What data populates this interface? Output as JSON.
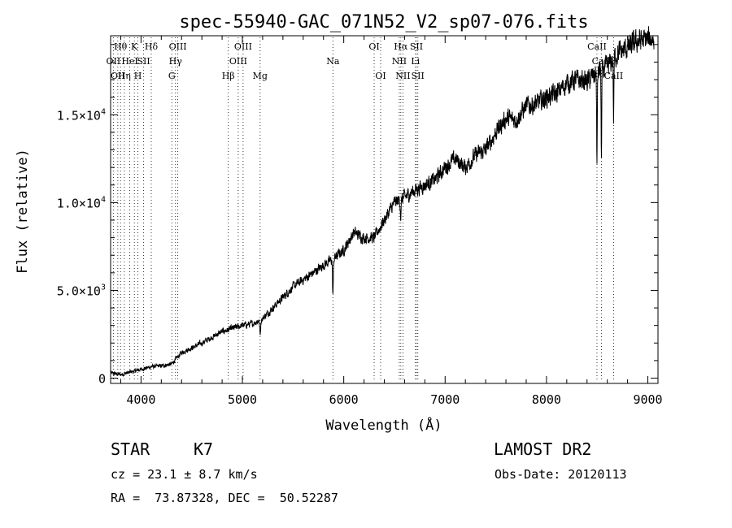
{
  "chart_data": {
    "type": "line",
    "title": "spec-55940-GAC_071N52_V2_sp07-076.fits",
    "xlabel": "Wavelength (Å)",
    "ylabel": "Flux (relative)",
    "xlim": [
      3700,
      9100
    ],
    "ylim": [
      -300,
      19500
    ],
    "x_ticks": [
      {
        "value": 4000,
        "label": "4000"
      },
      {
        "value": 5000,
        "label": "5000"
      },
      {
        "value": 6000,
        "label": "6000"
      },
      {
        "value": 7000,
        "label": "7000"
      },
      {
        "value": 8000,
        "label": "8000"
      },
      {
        "value": 9000,
        "label": "9000"
      }
    ],
    "y_ticks": [
      {
        "value": 0,
        "label": "0",
        "exp": ""
      },
      {
        "value": 5000,
        "label": "5.0×10",
        "exp": "3"
      },
      {
        "value": 10000,
        "label": "1.0×10",
        "exp": "4"
      },
      {
        "value": 15000,
        "label": "1.5×10",
        "exp": "4"
      }
    ],
    "series": [
      {
        "name": "spectrum",
        "continuum": [
          [
            3700,
            300
          ],
          [
            3800,
            200
          ],
          [
            3900,
            350
          ],
          [
            4000,
            500
          ],
          [
            4100,
            650
          ],
          [
            4200,
            700
          ],
          [
            4300,
            800
          ],
          [
            4400,
            1450
          ],
          [
            4600,
            2000
          ],
          [
            4800,
            2650
          ],
          [
            5000,
            3000
          ],
          [
            5100,
            3100
          ],
          [
            5200,
            3400
          ],
          [
            5300,
            4000
          ],
          [
            5500,
            5200
          ],
          [
            5700,
            6000
          ],
          [
            5800,
            6450
          ],
          [
            5900,
            6800
          ],
          [
            6000,
            7300
          ],
          [
            6100,
            8300
          ],
          [
            6200,
            8000
          ],
          [
            6300,
            8000
          ],
          [
            6400,
            9000
          ],
          [
            6500,
            10000
          ],
          [
            6600,
            10300
          ],
          [
            6700,
            10700
          ],
          [
            6800,
            11000
          ],
          [
            6900,
            11300
          ],
          [
            7000,
            12000
          ],
          [
            7100,
            12500
          ],
          [
            7200,
            12000
          ],
          [
            7300,
            12700
          ],
          [
            7400,
            13000
          ],
          [
            7500,
            14000
          ],
          [
            7600,
            14800
          ],
          [
            7700,
            14700
          ],
          [
            7800,
            15500
          ],
          [
            7900,
            15600
          ],
          [
            8000,
            16000
          ],
          [
            8100,
            16200
          ],
          [
            8200,
            16800
          ],
          [
            8300,
            17000
          ],
          [
            8400,
            16900
          ],
          [
            8500,
            17400
          ],
          [
            8600,
            17700
          ],
          [
            8700,
            18500
          ],
          [
            8800,
            18800
          ],
          [
            8900,
            19200
          ],
          [
            9000,
            19300
          ]
        ],
        "absorption": [
          [
            5175,
            800,
            5
          ],
          [
            5893,
            2000,
            4
          ],
          [
            6563,
            1000,
            4
          ],
          [
            8498,
            5500,
            3
          ],
          [
            8542,
            5200,
            3
          ],
          [
            8662,
            3500,
            3
          ]
        ]
      }
    ],
    "spectral_lines": [
      {
        "wavelength": 3727,
        "label": "OII",
        "row": 1
      },
      {
        "wavelength": 3771,
        "label": "OII",
        "row": 2
      },
      {
        "wavelength": 3798,
        "label": "Hθ",
        "row": 0
      },
      {
        "wavelength": 3835,
        "label": "Hη",
        "row": 2
      },
      {
        "wavelength": 3889,
        "label": "HeI",
        "row": 1
      },
      {
        "wavelength": 3934,
        "label": "K",
        "row": 0
      },
      {
        "wavelength": 3969,
        "label": "H",
        "row": 2
      },
      {
        "wavelength": 4026,
        "label": "SII",
        "row": 1
      },
      {
        "wavelength": 4101,
        "label": "Hδ",
        "row": 0
      },
      {
        "wavelength": 4304,
        "label": "G",
        "row": 2
      },
      {
        "wavelength": 4340,
        "label": "Hγ",
        "row": 1
      },
      {
        "wavelength": 4363,
        "label": "OIII",
        "row": 0
      },
      {
        "wavelength": 4861,
        "label": "Hβ",
        "row": 2
      },
      {
        "wavelength": 4959,
        "label": "OIII",
        "row": 1
      },
      {
        "wavelength": 5007,
        "label": "OIII",
        "row": 0
      },
      {
        "wavelength": 5175,
        "label": "Mg",
        "row": 2
      },
      {
        "wavelength": 5893,
        "label": "Na",
        "row": 1
      },
      {
        "wavelength": 6300,
        "label": "OI",
        "row": 0
      },
      {
        "wavelength": 6364,
        "label": "OI",
        "row": 2
      },
      {
        "wavelength": 6548,
        "label": "NII",
        "row": 1
      },
      {
        "wavelength": 6563,
        "label": "Hα",
        "row": 0
      },
      {
        "wavelength": 6584,
        "label": "NII",
        "row": 2
      },
      {
        "wavelength": 6707,
        "label": "Li",
        "row": 1
      },
      {
        "wavelength": 6717,
        "label": "SII",
        "row": 0
      },
      {
        "wavelength": 6731,
        "label": "SII",
        "row": 2
      },
      {
        "wavelength": 8498,
        "label": "CaII",
        "row": 0
      },
      {
        "wavelength": 8542,
        "label": "CaII",
        "row": 1
      },
      {
        "wavelength": 8662,
        "label": "CaII",
        "row": 2
      }
    ]
  },
  "info": {
    "class": "STAR",
    "subclass": "K7",
    "cz": "cz = 23.1 ± 8.7 km/s",
    "coords": "RA =  73.87328, DEC =  50.52287",
    "survey": "LAMOST DR2",
    "obs_date": "Obs-Date: 20120113"
  }
}
